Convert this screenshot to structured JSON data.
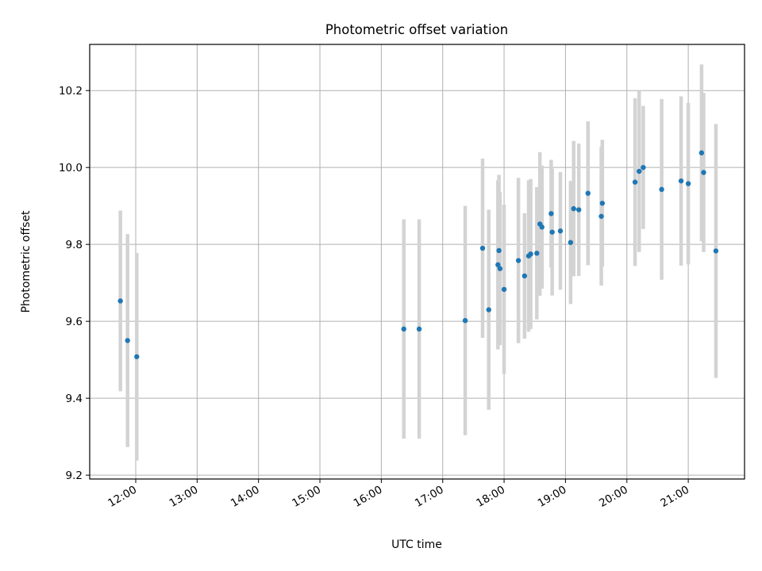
{
  "chart_data": {
    "type": "scatter",
    "title": "Photometric offset variation",
    "xlabel": "UTC time",
    "ylabel": "Photometric offset",
    "x_tick_labels": [
      "12:00",
      "13:00",
      "14:00",
      "15:00",
      "16:00",
      "17:00",
      "18:00",
      "19:00",
      "20:00",
      "21:00"
    ],
    "y_tick_labels": [
      "9.2",
      "9.4",
      "9.6",
      "9.8",
      "10.0",
      "10.2"
    ],
    "xlim": [
      "11:15",
      "21:55"
    ],
    "ylim": [
      9.19,
      10.32
    ],
    "grid": true,
    "colors": {
      "point": "#1f77b4",
      "errorbar": "#d3d3d3",
      "grid": "#b0b0b0"
    },
    "points": [
      {
        "x": "11:45",
        "y": 9.653,
        "err": 0.235
      },
      {
        "x": "11:52",
        "y": 9.55,
        "err": 0.277
      },
      {
        "x": "12:01",
        "y": 9.508,
        "err": 0.27
      },
      {
        "x": "16:22",
        "y": 9.58,
        "err": 0.285
      },
      {
        "x": "16:37",
        "y": 9.58,
        "err": 0.285
      },
      {
        "x": "17:22",
        "y": 9.602,
        "err": 0.298
      },
      {
        "x": "17:39",
        "y": 9.79,
        "err": 0.233
      },
      {
        "x": "17:45",
        "y": 9.63,
        "err": 0.26
      },
      {
        "x": "17:54",
        "y": 9.747,
        "err": 0.22
      },
      {
        "x": "17:55",
        "y": 9.784,
        "err": 0.197
      },
      {
        "x": "17:56",
        "y": 9.737,
        "err": 0.199
      },
      {
        "x": "18:00",
        "y": 9.683,
        "err": 0.22
      },
      {
        "x": "18:14",
        "y": 9.758,
        "err": 0.215
      },
      {
        "x": "18:20",
        "y": 9.718,
        "err": 0.163
      },
      {
        "x": "18:24",
        "y": 9.77,
        "err": 0.197
      },
      {
        "x": "18:26",
        "y": 9.775,
        "err": 0.195
      },
      {
        "x": "18:32",
        "y": 9.777,
        "err": 0.172
      },
      {
        "x": "18:35",
        "y": 9.853,
        "err": 0.187
      },
      {
        "x": "18:37",
        "y": 9.845,
        "err": 0.16
      },
      {
        "x": "18:46",
        "y": 9.88,
        "err": 0.14
      },
      {
        "x": "18:47",
        "y": 9.832,
        "err": 0.165
      },
      {
        "x": "18:55",
        "y": 9.835,
        "err": 0.153
      },
      {
        "x": "19:05",
        "y": 9.805,
        "err": 0.16
      },
      {
        "x": "19:08",
        "y": 9.893,
        "err": 0.176
      },
      {
        "x": "19:13",
        "y": 9.89,
        "err": 0.172
      },
      {
        "x": "19:22",
        "y": 9.933,
        "err": 0.187
      },
      {
        "x": "19:35",
        "y": 9.873,
        "err": 0.18
      },
      {
        "x": "19:36",
        "y": 9.907,
        "err": 0.165
      },
      {
        "x": "20:08",
        "y": 9.962,
        "err": 0.218
      },
      {
        "x": "20:12",
        "y": 9.99,
        "err": 0.21
      },
      {
        "x": "20:16",
        "y": 10.0,
        "err": 0.16
      },
      {
        "x": "20:34",
        "y": 9.943,
        "err": 0.235
      },
      {
        "x": "20:53",
        "y": 9.965,
        "err": 0.22
      },
      {
        "x": "21:00",
        "y": 9.958,
        "err": 0.21
      },
      {
        "x": "21:13",
        "y": 10.038,
        "err": 0.23
      },
      {
        "x": "21:15",
        "y": 9.987,
        "err": 0.207
      },
      {
        "x": "21:27",
        "y": 9.783,
        "err": 0.33
      }
    ]
  }
}
